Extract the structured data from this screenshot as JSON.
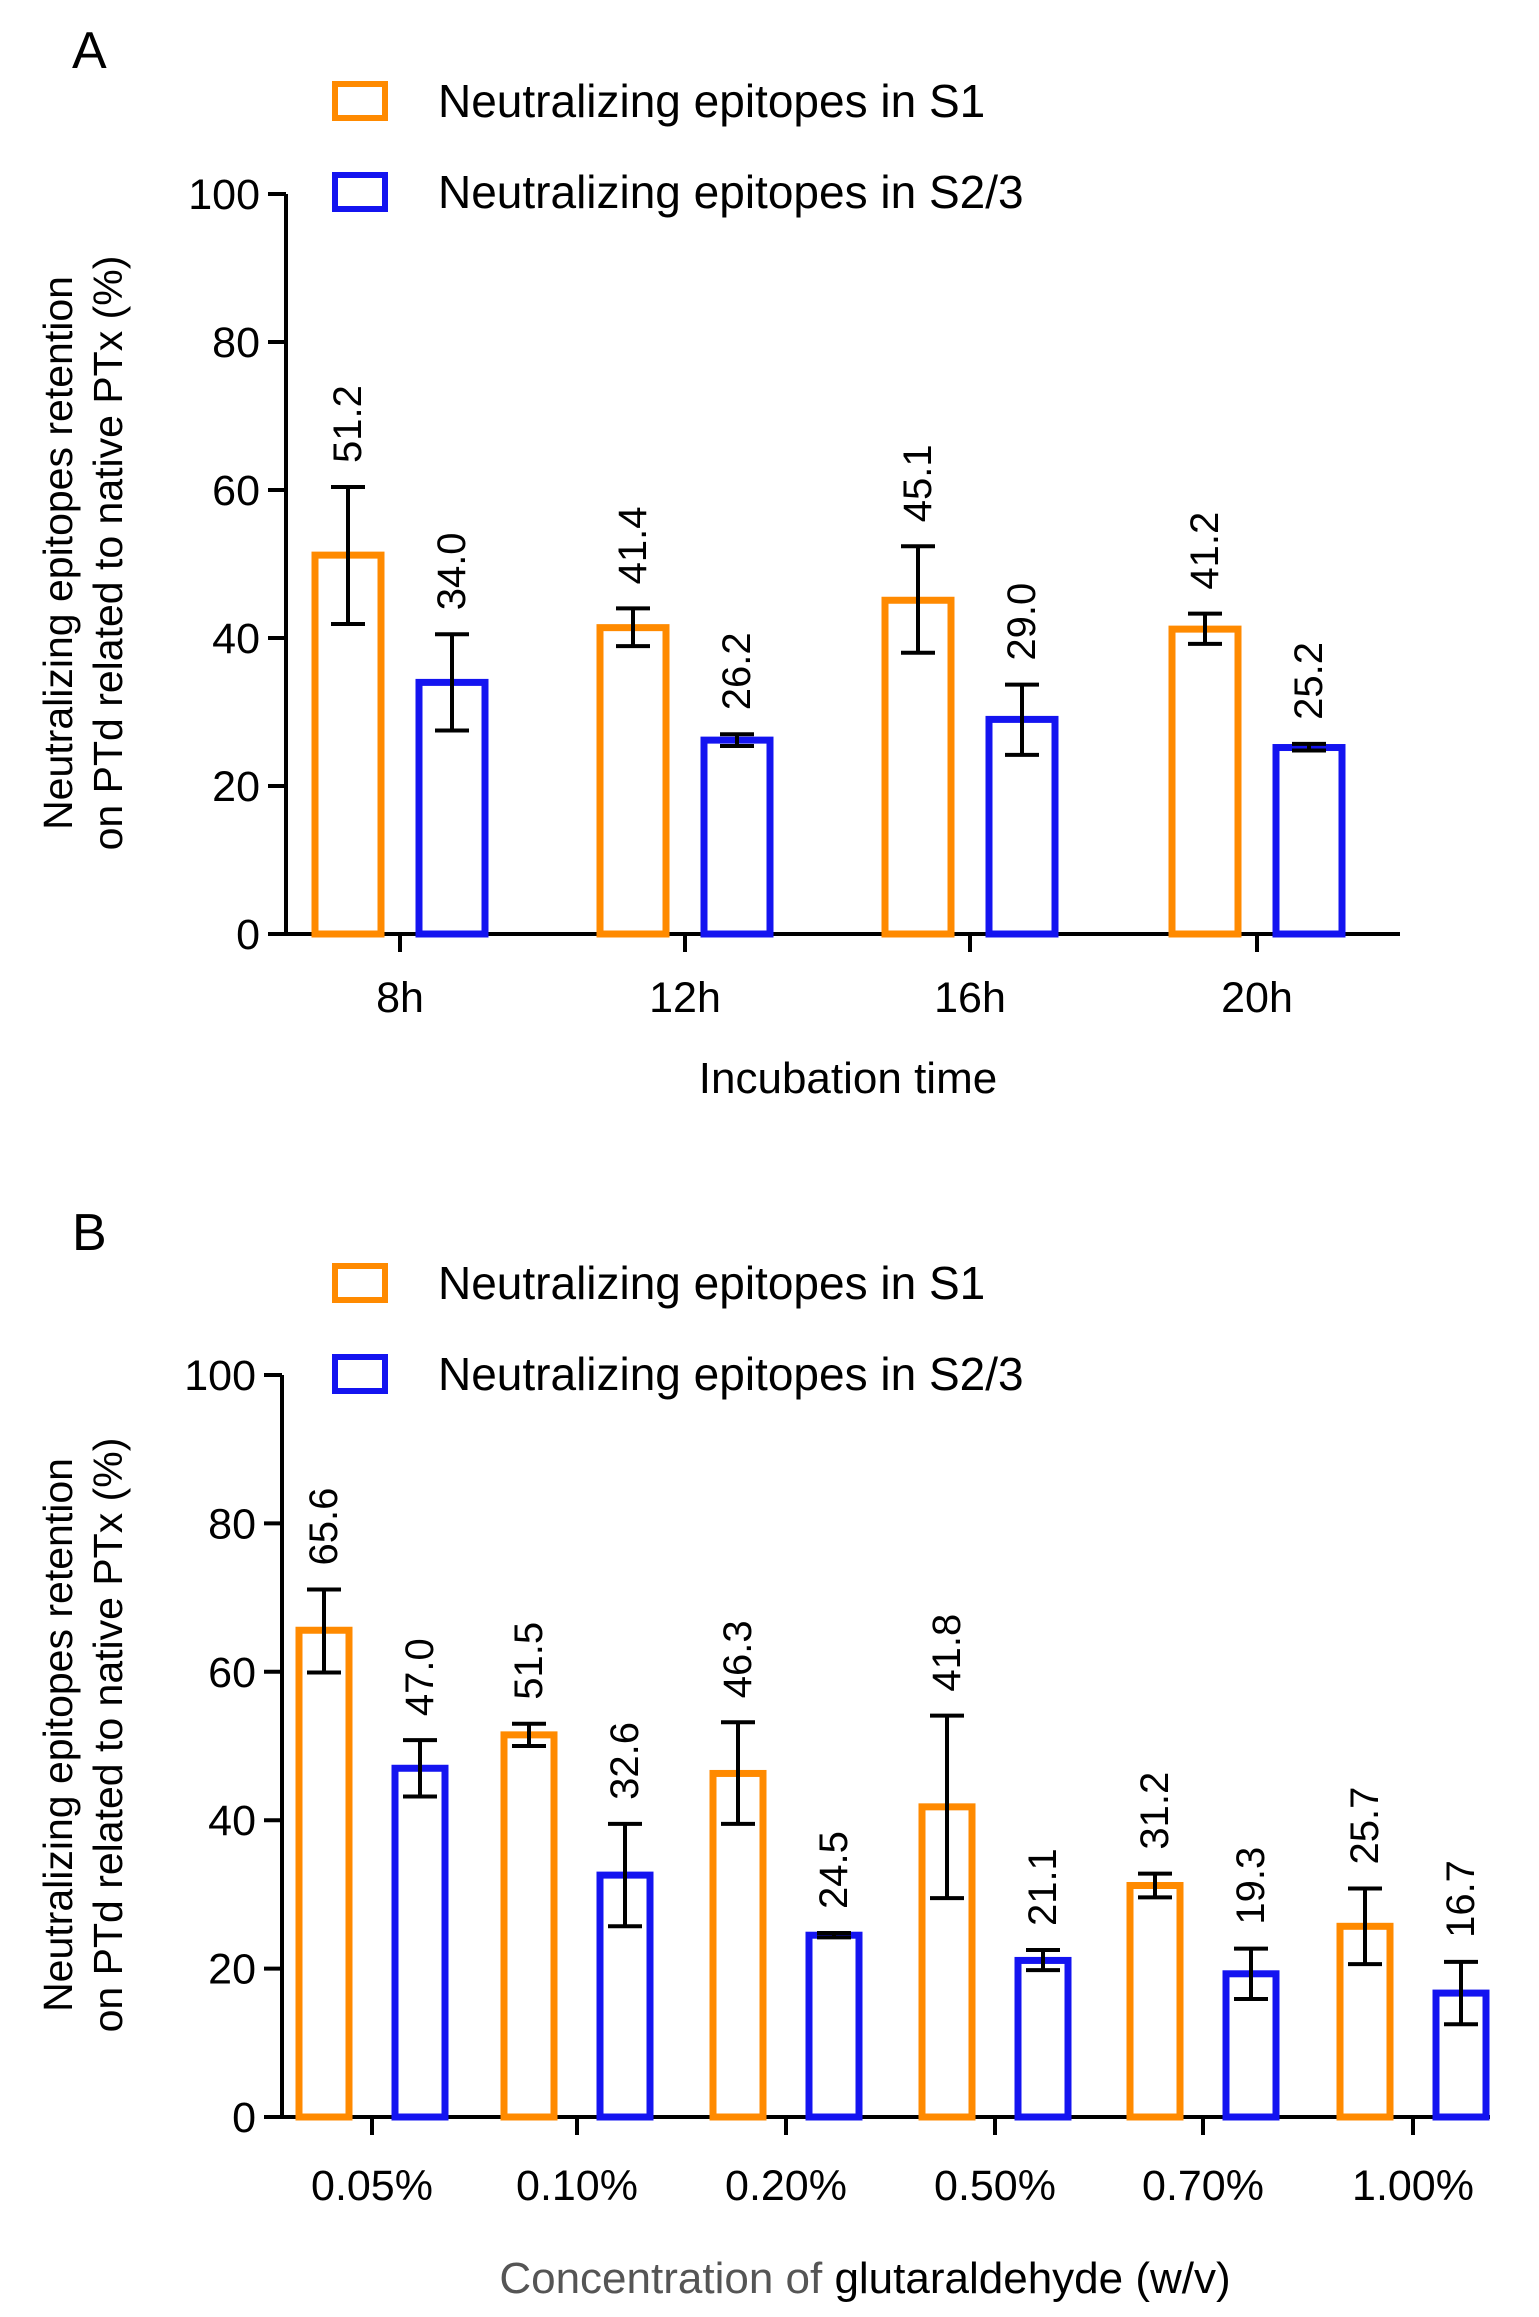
{
  "figure": {
    "colors": {
      "s1": "#FF8A00",
      "s23": "#1414F0",
      "axis": "#000000",
      "xlabel_gray": "#555555"
    }
  },
  "chart_data": [
    {
      "panel": "A",
      "type": "bar",
      "legend": [
        "Neutralizing epitopes in S1",
        "Neutralizing epitopes in S2/3"
      ],
      "legend_position": "top-left",
      "ylabel": [
        "Neutralizing epitopes retention",
        "on PTd related to native PTx (%)"
      ],
      "xlabel_parts": [
        "Incubation time"
      ],
      "ylim": [
        0,
        100
      ],
      "yticks": [
        0,
        20,
        40,
        60,
        80,
        100
      ],
      "categories": [
        "8h",
        "12h",
        "16h",
        "20h"
      ],
      "series": [
        {
          "name": "Neutralizing epitopes in S1",
          "values": [
            51.2,
            41.4,
            45.1,
            41.2
          ],
          "labels": [
            "51.2",
            "41.4",
            "45.1",
            "41.2"
          ],
          "err_low": [
            41.9,
            38.9,
            38.0,
            39.2
          ],
          "err_high": [
            60.4,
            44.0,
            52.4,
            43.3
          ]
        },
        {
          "name": "Neutralizing epitopes in S2/3",
          "values": [
            34.0,
            26.2,
            29.0,
            25.2
          ],
          "labels": [
            "34.0",
            "26.2",
            "29.0",
            "25.2"
          ],
          "err_low": [
            27.5,
            25.4,
            24.2,
            24.8
          ],
          "err_high": [
            40.5,
            27.0,
            33.7,
            25.7
          ]
        }
      ]
    },
    {
      "panel": "B",
      "type": "bar",
      "legend": [
        "Neutralizing epitopes in S1",
        "Neutralizing epitopes in S2/3"
      ],
      "legend_position": "top-left",
      "ylabel": [
        "Neutralizing epitopes retention",
        "on PTd related to native PTx (%)"
      ],
      "xlabel_parts": [
        "Concentration of ",
        "glutaraldehyde (w/v)"
      ],
      "ylim": [
        0,
        100
      ],
      "yticks": [
        0,
        20,
        40,
        60,
        80,
        100
      ],
      "categories": [
        "0.05%",
        "0.10%",
        "0.20%",
        "0.50%",
        "0.70%",
        "1.00%"
      ],
      "series": [
        {
          "name": "Neutralizing epitopes in S1",
          "values": [
            65.6,
            51.5,
            46.3,
            41.8,
            31.2,
            25.7
          ],
          "labels": [
            "65.6",
            "51.5",
            "46.3",
            "41.8",
            "31.2",
            "25.7"
          ],
          "err_low": [
            59.9,
            50.0,
            39.5,
            29.5,
            29.6,
            20.6
          ],
          "err_high": [
            71.1,
            53.0,
            53.2,
            54.1,
            32.8,
            30.8
          ]
        },
        {
          "name": "Neutralizing epitopes in S2/3",
          "values": [
            47.0,
            32.6,
            24.5,
            21.1,
            19.3,
            16.7
          ],
          "labels": [
            "47.0",
            "32.6",
            "24.5",
            "21.1",
            "19.3",
            "16.7"
          ],
          "err_low": [
            43.2,
            25.7,
            24.2,
            19.8,
            15.9,
            12.5
          ],
          "err_high": [
            50.8,
            39.5,
            24.8,
            22.5,
            22.7,
            20.9
          ]
        }
      ]
    }
  ]
}
